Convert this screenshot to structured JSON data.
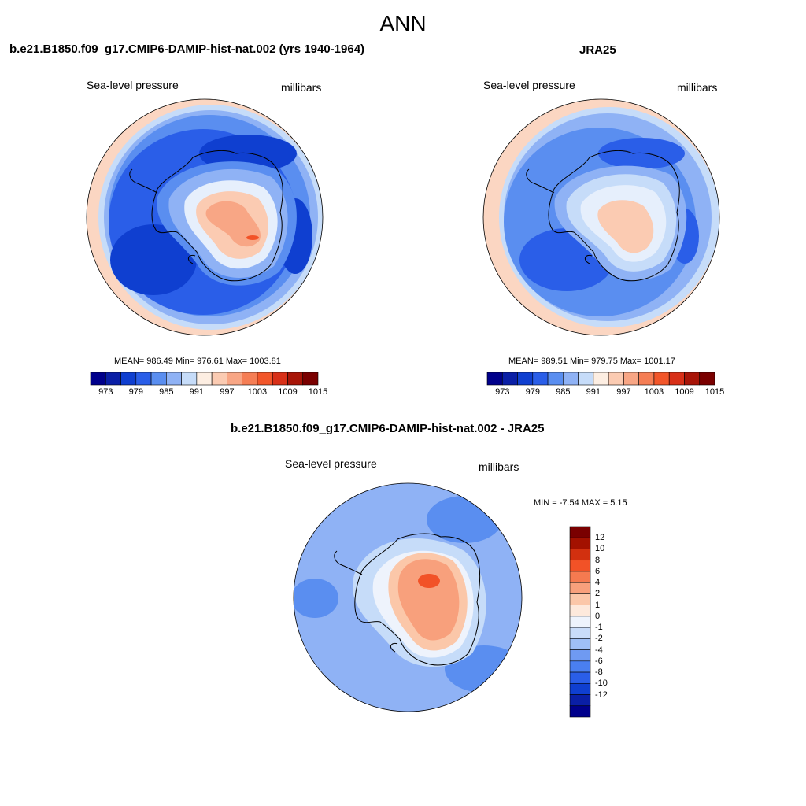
{
  "figure": {
    "title": "ANN"
  },
  "panels": [
    {
      "title": "b.e21.B1850.f09_g17.CMIP6-DAMIP-hist-nat.002 (yrs 1940-1964)",
      "variable": "Sea-level pressure",
      "units": "millibars",
      "stats": "MEAN= 986.49  Min= 976.61  Max= 1003.81"
    },
    {
      "title": "JRA25",
      "variable": "Sea-level pressure",
      "units": "millibars",
      "stats": "MEAN= 989.51  Min= 979.75  Max= 1001.17"
    },
    {
      "title": "b.e21.B1850.f09_g17.CMIP6-DAMIP-hist-nat.002 - JRA25",
      "variable": "Sea-level pressure",
      "units": "millibars",
      "stats": "MIN =  -7.54 MAX =   5.15"
    }
  ],
  "abs_colorbar": {
    "colors": [
      "#00008b",
      "#0a1fa6",
      "#0f3fd0",
      "#2a5ee8",
      "#5a8ef0",
      "#8fb2f5",
      "#c6dcf9",
      "#fdeee2",
      "#fbcbb2",
      "#f8a685",
      "#f57e55",
      "#f2562a",
      "#d83018",
      "#a81508",
      "#7a0000"
    ],
    "tick_labels": [
      "973",
      "979",
      "985",
      "991",
      "997",
      "1003",
      "1009",
      "1015"
    ]
  },
  "diff_colorbar": {
    "colors": [
      "#00008b",
      "#0a1fa6",
      "#0f3fd0",
      "#2a5ee8",
      "#4a7ff0",
      "#6f9af2",
      "#9fbff6",
      "#c9dcf9",
      "#eef3fc",
      "#fde9dc",
      "#fbc7a9",
      "#f8a07c",
      "#f57a50",
      "#f25227",
      "#d2300f",
      "#a31100",
      "#7a0000"
    ],
    "tick_labels": [
      "12",
      "10",
      "8",
      "6",
      "4",
      "2",
      "1",
      "0",
      "-1",
      "-2",
      "-4",
      "-6",
      "-8",
      "-10",
      "-12"
    ]
  },
  "map_colors": {
    "outer_pink": "#fbd6c2",
    "ring_light": "#c6dcf9",
    "ring_mid": "#8fb2f5",
    "ring_blue": "#5a8ef0",
    "ring_deep": "#2a5ee8",
    "ring_darkest": "#0f3fd0",
    "plateau_pale": "#e6effc",
    "plateau_pink": "#fbcbb2",
    "plateau_orange": "#f8a685",
    "plateau_red": "#f25227",
    "diff_ocean": "#8fb2f5",
    "diff_ocean_dark": "#5a8ef0",
    "diff_light": "#c6dcf9",
    "diff_pale": "#eef3fc",
    "diff_pink": "#fbc7a9",
    "diff_orange": "#f8a07c",
    "diff_red": "#f25227"
  }
}
